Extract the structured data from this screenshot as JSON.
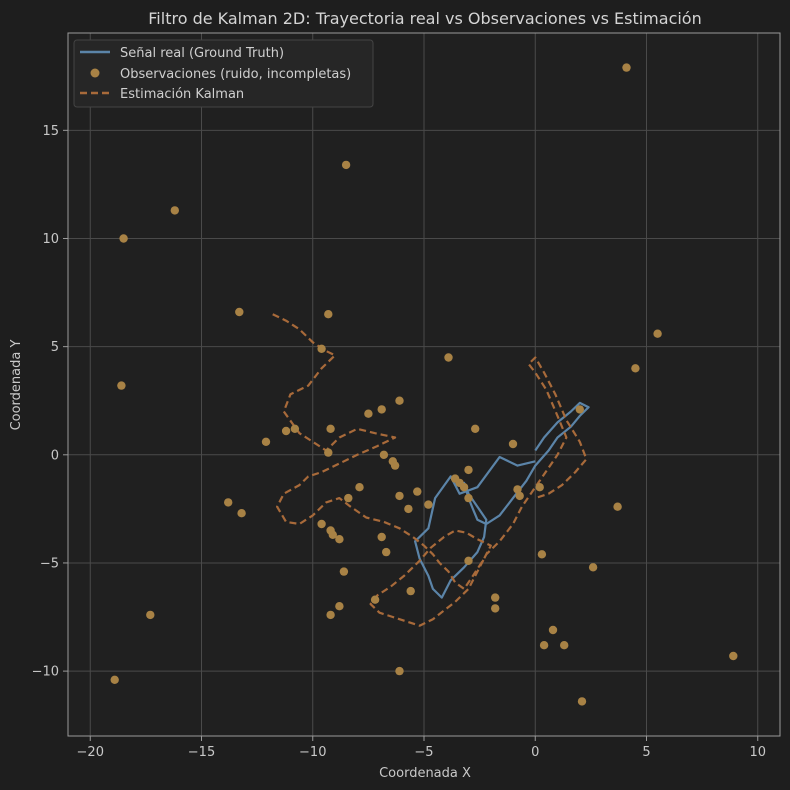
{
  "chart_data": {
    "type": "line",
    "title": "Filtro de Kalman 2D: Trayectoria real vs Observaciones vs Estimación",
    "xlabel": "Coordenada X",
    "ylabel": "Coordenada Y",
    "xlim": [
      -21,
      11
    ],
    "ylim": [
      -13,
      19.5
    ],
    "xticks": [
      -20,
      -15,
      -10,
      -5,
      0,
      5,
      10
    ],
    "yticks": [
      -10,
      -5,
      0,
      5,
      10,
      15
    ],
    "xtick_labels": [
      "−20",
      "−15",
      "−10",
      "−5",
      "0",
      "5",
      "10"
    ],
    "ytick_labels": [
      "−10",
      "−5",
      "0",
      "5",
      "10",
      "15"
    ],
    "grid": true,
    "legend_position": "top-left",
    "colors": {
      "background": "#1e1e1e",
      "plot_background": "#202020",
      "grid": "#4a4a4a",
      "spine": "#9a9a9a",
      "truth": "#5b84a8",
      "observations": "#a88245",
      "estimate": "#a86a3a"
    },
    "series": [
      {
        "name": "Señal real (Ground Truth)",
        "kind": "line",
        "x": [
          0,
          -0.8,
          -1.6,
          -2.6,
          -3.4,
          -3.8,
          -4.5,
          -4.8,
          -5.4,
          -5.2,
          -4.8,
          -4.6,
          -4.2,
          -3.8,
          -3.2,
          -2.6,
          -2.3,
          -2.2,
          -2.6,
          -3.0,
          -3.2,
          -3.0,
          -2.8,
          -2.6,
          -2.2,
          -1.6,
          -1.0,
          -0.4,
          0,
          0.6,
          1.0,
          1.6,
          2.0,
          2.4,
          2.0,
          1.6,
          1.0,
          0.4,
          0
        ],
        "y": [
          -0.3,
          -0.5,
          -0.1,
          -1.5,
          -1.8,
          -1.0,
          -2.0,
          -3.4,
          -4.0,
          -4.8,
          -5.6,
          -6.2,
          -6.6,
          -5.8,
          -5.2,
          -4.5,
          -3.8,
          -3.0,
          -2.4,
          -1.8,
          -1.3,
          -2.0,
          -2.5,
          -3.0,
          -3.2,
          -2.8,
          -2.0,
          -1.2,
          -0.5,
          0.2,
          0.8,
          1.3,
          1.8,
          2.2,
          2.4,
          2.0,
          1.5,
          0.8,
          0.2
        ]
      },
      {
        "name": "Observaciones (ruido, incompletas)",
        "kind": "scatter",
        "x": [
          4.1,
          -8.5,
          -16.2,
          -18.5,
          -13.3,
          -9.3,
          -9.6,
          -3.9,
          5.5,
          4.5,
          -18.6,
          -7.5,
          -6.1,
          -6.9,
          -9.2,
          -11.2,
          -10.8,
          -2.7,
          -12.1,
          -9.3,
          -1.0,
          -6.8,
          -3.0,
          -6.3,
          -6.4,
          -3.6,
          -3.4,
          -3.2,
          -0.8,
          -0.7,
          -13.8,
          -13.2,
          -8.4,
          -7.9,
          -6.1,
          -5.3,
          -5.7,
          -4.8,
          -3.0,
          -9.6,
          -9.2,
          -9.1,
          -8.8,
          -6.9,
          -6.7,
          0.3,
          -3.0,
          -8.6,
          -17.3,
          -8.8,
          -9.2,
          -1.8,
          -1.8,
          0.8,
          0.4,
          1.3,
          -6.1,
          -18.9,
          2.1,
          8.9,
          2.6,
          -5.6,
          -7.2,
          3.7,
          0.2,
          2.0
        ],
        "y": [
          17.9,
          13.4,
          11.3,
          10.0,
          6.6,
          6.5,
          4.9,
          4.5,
          5.6,
          4.0,
          3.2,
          1.9,
          2.5,
          2.1,
          1.2,
          1.1,
          1.2,
          1.2,
          0.6,
          0.1,
          0.5,
          0.0,
          -0.7,
          -0.5,
          -0.3,
          -1.1,
          -1.3,
          -1.5,
          -1.6,
          -1.9,
          -2.2,
          -2.7,
          -2.0,
          -1.5,
          -1.9,
          -1.7,
          -2.5,
          -2.3,
          -2.0,
          -3.2,
          -3.5,
          -3.7,
          -3.9,
          -3.8,
          -4.5,
          -4.6,
          -4.9,
          -5.4,
          -7.4,
          -7.0,
          -7.4,
          -6.6,
          -7.1,
          -8.1,
          -8.8,
          -8.8,
          -10.0,
          -10.4,
          -11.4,
          -9.3,
          -5.2,
          -6.3,
          -6.7,
          -2.4,
          -1.5,
          2.1
        ]
      },
      {
        "name": "Estimación Kalman",
        "kind": "dashed-line",
        "x": [
          -11.8,
          -11.2,
          -10.6,
          -10.0,
          -9.4,
          -9.0,
          -9.6,
          -10.2,
          -11.0,
          -11.3,
          -10.6,
          -10.0,
          -9.4,
          -8.8,
          -8.0,
          -7.2,
          -6.3,
          -7.1,
          -8.0,
          -8.8,
          -9.6,
          -10.2,
          -10.6,
          -11.3,
          -11.6,
          -11.2,
          -10.6,
          -10.0,
          -9.4,
          -8.8,
          -8.3,
          -7.6,
          -6.8,
          -6.1,
          -5.5,
          -5.0,
          -4.6,
          -4.3,
          -3.9,
          -3.6,
          -3.2,
          -2.8,
          -2.3,
          -2.0,
          -2.6,
          -3.1,
          -3.6,
          -4.1,
          -4.7,
          -5.2,
          -5.9,
          -6.5,
          -7.1,
          -7.4,
          -7.0,
          -6.4,
          -5.8,
          -5.2,
          -4.6,
          -4.1,
          -3.6,
          -3.0,
          -2.6,
          -2.2,
          -1.6,
          -1.0,
          -0.6,
          -0.2,
          0.2,
          0.6,
          1.0,
          1.4,
          1.0,
          0.5,
          0,
          -0.3,
          0,
          0.4,
          0.9,
          1.4,
          2.0,
          2.3,
          1.8,
          1.2,
          0.6,
          0
        ],
        "y": [
          6.5,
          6.2,
          5.8,
          5.2,
          4.8,
          4.6,
          4.0,
          3.2,
          2.8,
          2.0,
          1.0,
          0.6,
          0.2,
          0.8,
          1.2,
          1.0,
          0.8,
          0.4,
          0.0,
          -0.4,
          -0.8,
          -1.0,
          -1.4,
          -1.8,
          -2.4,
          -3.1,
          -3.2,
          -2.8,
          -2.2,
          -2.0,
          -2.4,
          -2.9,
          -3.1,
          -3.4,
          -3.8,
          -4.2,
          -4.6,
          -5.0,
          -5.4,
          -5.9,
          -6.2,
          -5.6,
          -4.8,
          -4.2,
          -3.9,
          -3.6,
          -3.5,
          -3.8,
          -4.3,
          -4.9,
          -5.6,
          -6.1,
          -6.5,
          -6.9,
          -7.3,
          -7.5,
          -7.7,
          -7.9,
          -7.6,
          -7.2,
          -6.8,
          -6.2,
          -5.4,
          -4.6,
          -4.0,
          -3.2,
          -2.4,
          -1.8,
          -1.2,
          -0.6,
          0.0,
          0.8,
          1.8,
          3.0,
          3.8,
          4.2,
          4.5,
          3.8,
          2.8,
          1.6,
          0.6,
          -0.2,
          -0.8,
          -1.4,
          -1.8,
          -2.0
        ]
      }
    ]
  }
}
